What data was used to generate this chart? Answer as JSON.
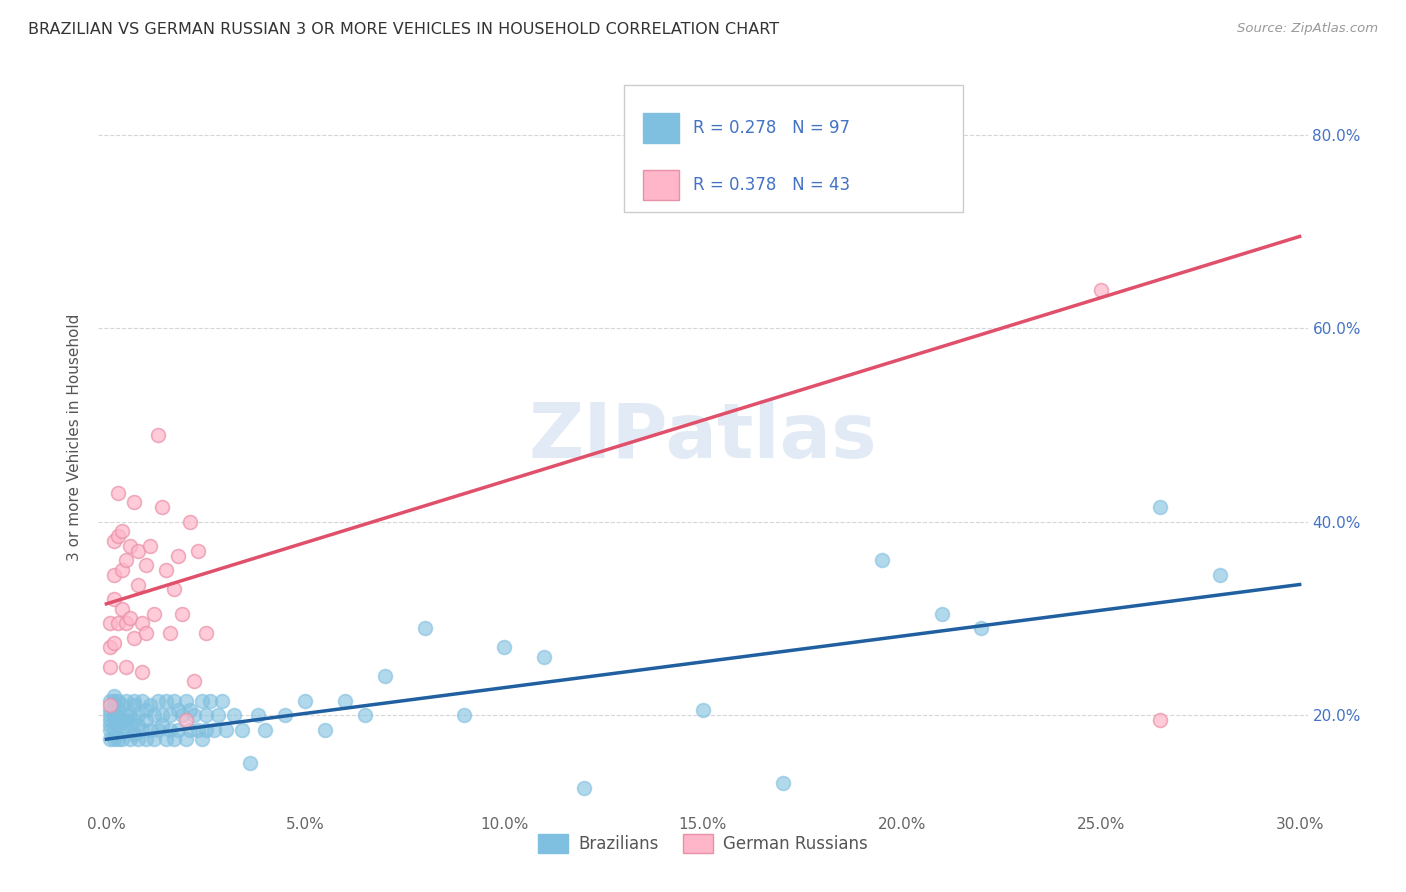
{
  "title": "BRAZILIAN VS GERMAN RUSSIAN 3 OR MORE VEHICLES IN HOUSEHOLD CORRELATION CHART",
  "source": "Source: ZipAtlas.com",
  "ylabel_label": "3 or more Vehicles in Household",
  "xlim": [
    -0.002,
    0.302
  ],
  "ylim": [
    0.1,
    0.875
  ],
  "xtick_vals": [
    0.0,
    0.05,
    0.1,
    0.15,
    0.2,
    0.25,
    0.3
  ],
  "xtick_labels": [
    "0.0%",
    "5.0%",
    "10.0%",
    "15.0%",
    "20.0%",
    "25.0%",
    "30.0%"
  ],
  "ytick_vals": [
    0.2,
    0.4,
    0.6,
    0.8
  ],
  "ytick_labels": [
    "20.0%",
    "40.0%",
    "60.0%",
    "80.0%"
  ],
  "blue_R": 0.278,
  "blue_N": 97,
  "pink_R": 0.378,
  "pink_N": 43,
  "blue_color": "#7fbfdf",
  "pink_color": "#ffb6c8",
  "blue_line_color": "#2060a0",
  "pink_line_color": "#e0506a",
  "legend_blue_label": "Brazilians",
  "legend_pink_label": "German Russians",
  "blue_trendline_x": [
    0.0,
    0.3
  ],
  "blue_trendline_y": [
    0.175,
    0.335
  ],
  "pink_trendline_x": [
    0.0,
    0.3
  ],
  "pink_trendline_y": [
    0.315,
    0.695
  ],
  "blue_scatter_x": [
    0.001,
    0.001,
    0.001,
    0.001,
    0.001,
    0.001,
    0.001,
    0.002,
    0.002,
    0.002,
    0.002,
    0.002,
    0.002,
    0.002,
    0.003,
    0.003,
    0.003,
    0.003,
    0.003,
    0.004,
    0.004,
    0.004,
    0.004,
    0.005,
    0.005,
    0.005,
    0.005,
    0.006,
    0.006,
    0.006,
    0.007,
    0.007,
    0.007,
    0.007,
    0.008,
    0.008,
    0.008,
    0.009,
    0.009,
    0.01,
    0.01,
    0.01,
    0.011,
    0.011,
    0.012,
    0.012,
    0.013,
    0.013,
    0.014,
    0.014,
    0.015,
    0.015,
    0.016,
    0.016,
    0.017,
    0.017,
    0.018,
    0.018,
    0.019,
    0.02,
    0.02,
    0.021,
    0.021,
    0.022,
    0.023,
    0.024,
    0.024,
    0.025,
    0.025,
    0.026,
    0.027,
    0.028,
    0.029,
    0.03,
    0.032,
    0.034,
    0.036,
    0.038,
    0.04,
    0.045,
    0.05,
    0.055,
    0.06,
    0.065,
    0.07,
    0.08,
    0.09,
    0.1,
    0.11,
    0.12,
    0.15,
    0.17,
    0.195,
    0.21,
    0.22,
    0.265,
    0.28
  ],
  "blue_scatter_y": [
    0.19,
    0.205,
    0.185,
    0.215,
    0.195,
    0.175,
    0.2,
    0.22,
    0.195,
    0.185,
    0.21,
    0.2,
    0.175,
    0.215,
    0.2,
    0.19,
    0.215,
    0.175,
    0.205,
    0.195,
    0.185,
    0.21,
    0.175,
    0.2,
    0.195,
    0.185,
    0.215,
    0.2,
    0.19,
    0.175,
    0.21,
    0.195,
    0.18,
    0.215,
    0.2,
    0.175,
    0.19,
    0.215,
    0.185,
    0.205,
    0.195,
    0.175,
    0.21,
    0.185,
    0.2,
    0.175,
    0.215,
    0.185,
    0.2,
    0.19,
    0.215,
    0.175,
    0.2,
    0.185,
    0.215,
    0.175,
    0.205,
    0.185,
    0.2,
    0.215,
    0.175,
    0.205,
    0.185,
    0.2,
    0.185,
    0.215,
    0.175,
    0.2,
    0.185,
    0.215,
    0.185,
    0.2,
    0.215,
    0.185,
    0.2,
    0.185,
    0.15,
    0.2,
    0.185,
    0.2,
    0.215,
    0.185,
    0.215,
    0.2,
    0.24,
    0.29,
    0.2,
    0.27,
    0.26,
    0.125,
    0.205,
    0.13,
    0.36,
    0.305,
    0.29,
    0.415,
    0.345
  ],
  "pink_scatter_x": [
    0.001,
    0.001,
    0.001,
    0.001,
    0.002,
    0.002,
    0.002,
    0.002,
    0.003,
    0.003,
    0.003,
    0.004,
    0.004,
    0.004,
    0.005,
    0.005,
    0.005,
    0.006,
    0.006,
    0.007,
    0.007,
    0.008,
    0.008,
    0.009,
    0.009,
    0.01,
    0.01,
    0.011,
    0.012,
    0.013,
    0.014,
    0.015,
    0.016,
    0.017,
    0.018,
    0.019,
    0.02,
    0.021,
    0.022,
    0.023,
    0.025,
    0.25,
    0.265
  ],
  "pink_scatter_y": [
    0.21,
    0.27,
    0.25,
    0.295,
    0.345,
    0.275,
    0.32,
    0.38,
    0.43,
    0.385,
    0.295,
    0.35,
    0.31,
    0.39,
    0.36,
    0.295,
    0.25,
    0.375,
    0.3,
    0.42,
    0.28,
    0.335,
    0.37,
    0.295,
    0.245,
    0.355,
    0.285,
    0.375,
    0.305,
    0.49,
    0.415,
    0.35,
    0.285,
    0.33,
    0.365,
    0.305,
    0.195,
    0.4,
    0.235,
    0.37,
    0.285,
    0.64,
    0.195
  ]
}
